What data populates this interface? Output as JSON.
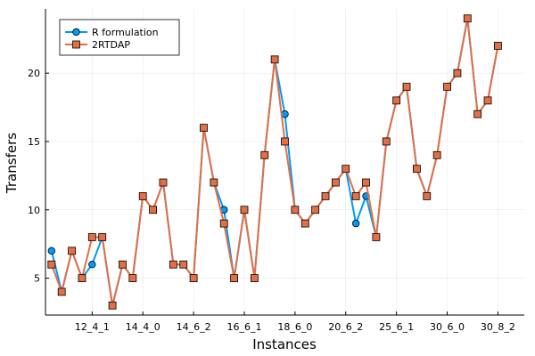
{
  "chart_data": {
    "type": "line",
    "title": "",
    "xlabel": "Instances",
    "ylabel": "Transfers",
    "x_tick_labels": [
      "12_4_1",
      "14_4_0",
      "14_6_2",
      "16_6_1",
      "18_6_0",
      "20_6_2",
      "25_6_1",
      "30_6_0",
      "30_8_2"
    ],
    "x_tick_positions": [
      5,
      10,
      15,
      20,
      25,
      30,
      35,
      40,
      45
    ],
    "yticks": [
      5,
      10,
      15,
      20
    ],
    "xlim": [
      0.4,
      47.6
    ],
    "ylim": [
      2.3,
      24.7
    ],
    "grid": true,
    "legend_position": "top-left",
    "x": [
      1,
      2,
      3,
      4,
      5,
      6,
      7,
      8,
      9,
      10,
      11,
      12,
      13,
      14,
      15,
      16,
      17,
      18,
      19,
      20,
      21,
      22,
      23,
      24,
      25,
      26,
      27,
      28,
      29,
      30,
      31,
      32,
      33,
      34,
      35,
      36,
      37,
      38,
      39,
      40,
      41,
      42,
      43,
      44,
      45
    ],
    "series": [
      {
        "name": "R formulation",
        "color": "#009af9",
        "marker": "circle",
        "values": [
          7,
          4,
          7,
          5,
          6,
          8,
          3,
          6,
          5,
          11,
          10,
          12,
          6,
          6,
          5,
          16,
          12,
          10,
          5,
          10,
          5,
          14,
          21,
          17,
          10,
          9,
          10,
          11,
          12,
          13,
          9,
          11,
          8,
          15,
          18,
          19,
          13,
          11,
          14,
          19,
          20,
          24,
          17,
          18,
          22
        ]
      },
      {
        "name": "2RTDAP",
        "color": "#e26f46",
        "marker": "square",
        "values": [
          6,
          4,
          7,
          5,
          8,
          8,
          3,
          6,
          5,
          11,
          10,
          12,
          6,
          6,
          5,
          16,
          12,
          9,
          5,
          10,
          5,
          14,
          21,
          15,
          10,
          9,
          10,
          11,
          12,
          13,
          11,
          12,
          8,
          15,
          18,
          19,
          13,
          11,
          14,
          19,
          20,
          24,
          17,
          18,
          22
        ]
      }
    ]
  }
}
